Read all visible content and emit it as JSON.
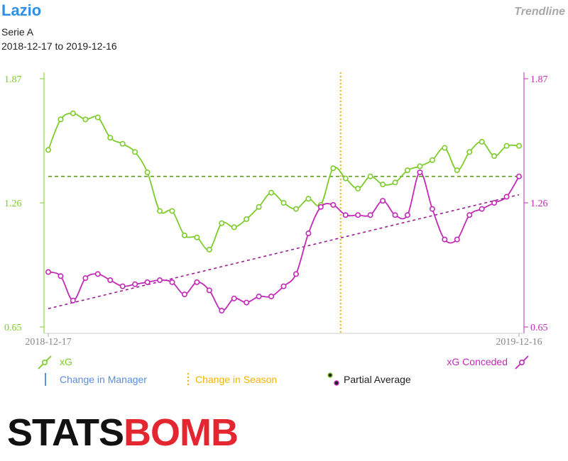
{
  "header": {
    "team": "Lazio",
    "competition": "Serie A",
    "date_range": "2018-12-17 to 2019-12-16",
    "tag": "Trendline"
  },
  "colors": {
    "xg": "#7dcc2c",
    "xg_dark": "#5a9a1e",
    "conceded": "#c229b7",
    "conceded_dark": "#9a1f8f",
    "season": "#f0b400",
    "manager": "#5a8ee0"
  },
  "chart_data": {
    "type": "line",
    "title": "",
    "xlabel": "",
    "ylabel": "",
    "x_start_label": "2018-12-17",
    "x_end_label": "2019-12-16",
    "y_left": {
      "ticks": [
        "1.87",
        "1.26",
        "0.65"
      ],
      "range": [
        0.65,
        1.87
      ]
    },
    "y_right": {
      "ticks": [
        "1.87",
        "1.26",
        "0.65"
      ],
      "range": [
        0.65,
        1.87
      ]
    },
    "season_change_index": 23.6,
    "series": [
      {
        "name": "xG",
        "values": [
          1.52,
          1.67,
          1.7,
          1.67,
          1.68,
          1.58,
          1.55,
          1.51,
          1.41,
          1.22,
          1.22,
          1.1,
          1.09,
          1.03,
          1.16,
          1.14,
          1.18,
          1.24,
          1.31,
          1.26,
          1.23,
          1.28,
          1.25,
          1.43,
          1.38,
          1.33,
          1.39,
          1.35,
          1.36,
          1.42,
          1.44,
          1.47,
          1.53,
          1.42,
          1.51,
          1.56,
          1.49,
          1.54,
          1.54
        ],
        "partial_average": 1.39
      },
      {
        "name": "xG Conceded",
        "values": [
          0.92,
          0.9,
          0.78,
          0.89,
          0.91,
          0.88,
          0.85,
          0.86,
          0.87,
          0.88,
          0.87,
          0.81,
          0.87,
          0.83,
          0.73,
          0.79,
          0.77,
          0.8,
          0.8,
          0.85,
          0.91,
          1.11,
          1.24,
          1.25,
          1.2,
          1.2,
          1.2,
          1.27,
          1.2,
          1.2,
          1.41,
          1.23,
          1.08,
          1.08,
          1.2,
          1.23,
          1.26,
          1.29,
          1.39
        ],
        "trend": [
          0.74,
          1.3
        ]
      }
    ],
    "legend": {
      "xg": "xG",
      "conceded": "xG Conceded",
      "manager": "Change in Manager",
      "season": "Change in Season",
      "partial": "Partial Average"
    }
  },
  "logo": {
    "part1": "STATS",
    "part2": "BOMB"
  }
}
